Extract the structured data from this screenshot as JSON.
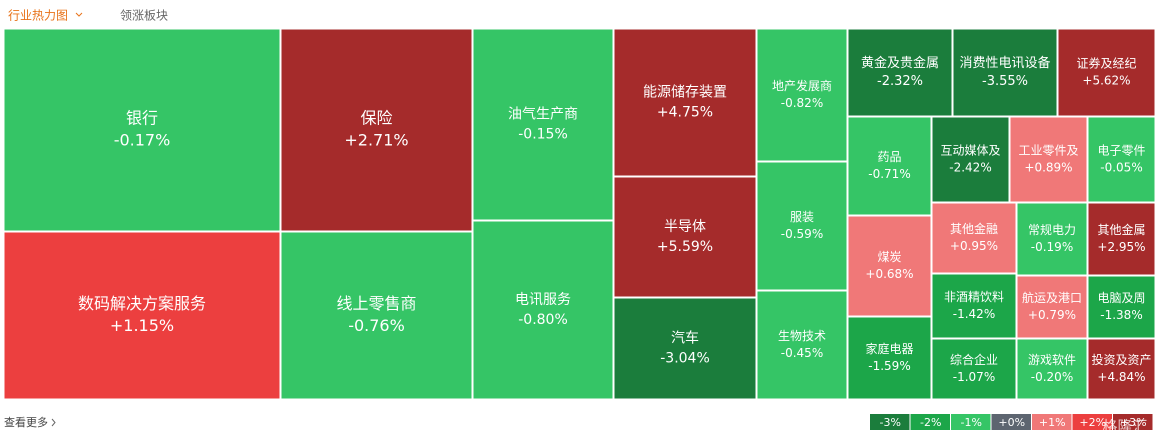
{
  "header": {
    "tabs": [
      "行业热力图",
      "领涨板块"
    ]
  },
  "chart_data": {
    "type": "treemap",
    "categories": [
      "银行",
      "数码解决方案服务",
      "保险",
      "线上零售商",
      "油气生产商",
      "电讯服务",
      "能源储存装置",
      "半导体",
      "汽车",
      "地产发展商",
      "服装",
      "生物技术",
      "黄金及贵金属",
      "消费性电讯设备",
      "证券及经纪",
      "药品",
      "煤炭",
      "家庭电器",
      "互动媒体及",
      "工业零件及",
      "电子零件",
      "其他金融",
      "常规电力",
      "其他金属",
      "非酒精饮料",
      "航运及港口",
      "电脑及周",
      "综合企业",
      "游戏软件",
      "投资及资产"
    ],
    "values": [
      -0.17,
      1.15,
      2.71,
      -0.76,
      -0.15,
      -0.8,
      4.75,
      5.59,
      -3.04,
      -0.82,
      -0.59,
      -0.45,
      -2.32,
      -3.55,
      5.62,
      -0.71,
      0.68,
      -1.59,
      -2.42,
      0.89,
      -0.05,
      0.95,
      -0.19,
      2.95,
      -1.42,
      0.79,
      -1.38,
      -1.07,
      -0.2,
      4.84
    ],
    "value_labels": [
      "-0.17%",
      "+1.15%",
      "+2.71%",
      "-0.76%",
      "-0.15%",
      "-0.80%",
      "+4.75%",
      "+5.59%",
      "-3.04%",
      "-0.82%",
      "-0.59%",
      "-0.45%",
      "-2.32%",
      "-3.55%",
      "+5.62%",
      "-0.71%",
      "+0.68%",
      "-1.59%",
      "-2.42%",
      "+0.89%",
      "-0.05%",
      "+0.95%",
      "-0.19%",
      "+2.95%",
      "-1.42%",
      "+0.79%",
      "-1.38%",
      "-1.07%",
      "-0.20%",
      "+4.84%"
    ],
    "colors": [
      "#35c566",
      "#ec3f3f",
      "#a52b2b",
      "#35c566",
      "#35c566",
      "#35c566",
      "#a52b2b",
      "#a52b2b",
      "#1b7d3c",
      "#35c566",
      "#35c566",
      "#35c566",
      "#1b7d3c",
      "#1b7d3c",
      "#a52b2b",
      "#35c566",
      "#f07878",
      "#1ca649",
      "#1b7d3c",
      "#f07878",
      "#35c566",
      "#f07878",
      "#35c566",
      "#a52b2b",
      "#1ca649",
      "#f07878",
      "#1ca649",
      "#1ca649",
      "#35c566",
      "#a52b2b"
    ],
    "legend": [
      {
        "label": "-3%",
        "color": "#1b7d3c"
      },
      {
        "label": "-2%",
        "color": "#1ca649"
      },
      {
        "label": "-1%",
        "color": "#35c566"
      },
      {
        "label": "+0%",
        "color": "#5d6570"
      },
      {
        "label": "+1%",
        "color": "#f07878"
      },
      {
        "label": "+2%",
        "color": "#ec3f3f"
      },
      {
        "label": "+3%",
        "color": "#a52b2b"
      }
    ]
  },
  "footer": {
    "more": "查看更多",
    "watermark": "格隆汇"
  }
}
